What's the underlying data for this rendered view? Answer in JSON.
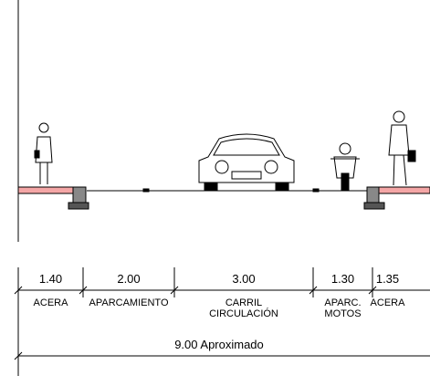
{
  "segments": [
    {
      "width": "1.40",
      "label": [
        "ACERA"
      ]
    },
    {
      "width": "2.00",
      "label": [
        "APARCAMIENTO"
      ]
    },
    {
      "width": "3.00",
      "label": [
        "CARRIL",
        "CIRCULACIÓN"
      ]
    },
    {
      "width": "1.30",
      "label": [
        "APARC.",
        "MOTOS"
      ]
    },
    {
      "width": "1.35",
      "label": [
        "ACERA"
      ]
    }
  ],
  "total": "9.00  Aproximado"
}
